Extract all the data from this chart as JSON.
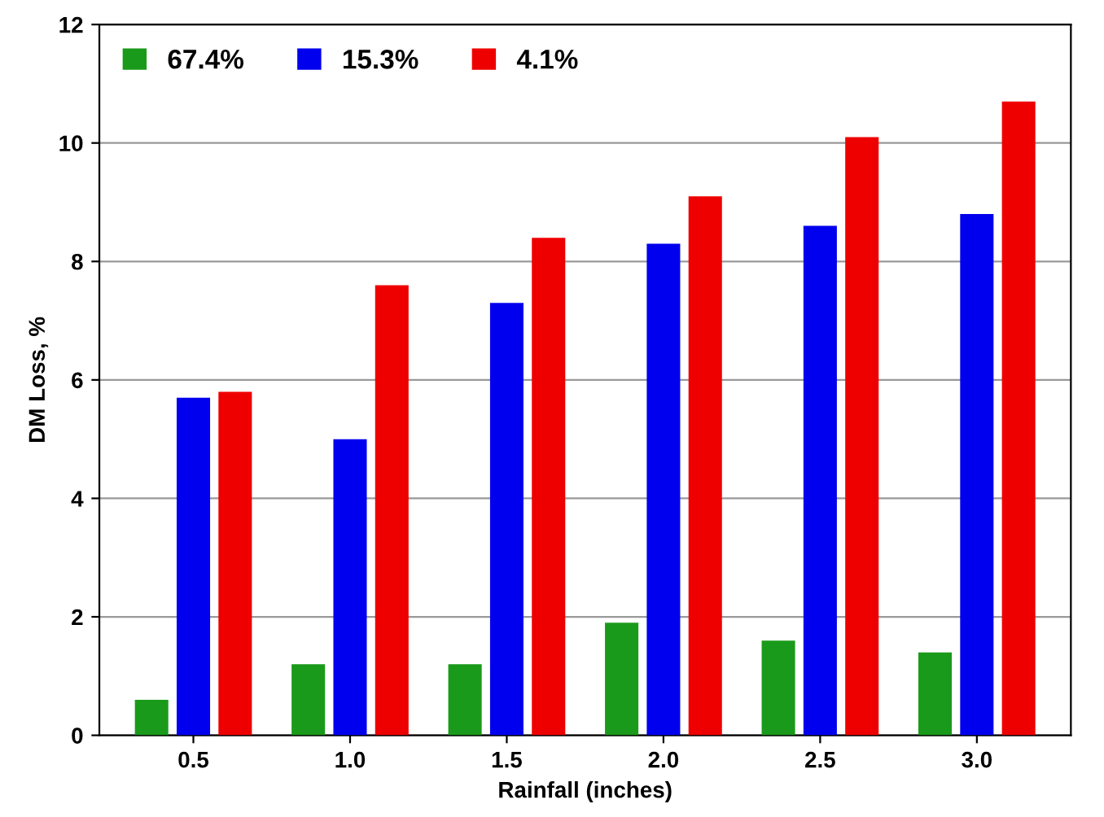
{
  "chart_data": {
    "type": "bar",
    "xlabel": "Rainfall (inches)",
    "ylabel": "DM Loss, %",
    "categories": [
      "0.5",
      "1.0",
      "1.5",
      "2.0",
      "2.5",
      "3.0"
    ],
    "series": [
      {
        "name": "67.4%",
        "color": "#1a9a1a",
        "values": [
          0.6,
          1.2,
          1.2,
          1.9,
          1.6,
          1.4
        ]
      },
      {
        "name": "15.3%",
        "color": "#0000ee",
        "values": [
          5.7,
          5.0,
          7.3,
          8.3,
          8.6,
          8.8
        ]
      },
      {
        "name": "4.1%",
        "color": "#ee0000",
        "values": [
          5.8,
          7.6,
          8.4,
          9.1,
          10.1,
          10.7
        ]
      }
    ],
    "ylim": [
      0,
      12
    ],
    "yticks": [
      0,
      2,
      4,
      6,
      8,
      10,
      12
    ],
    "grid": "y",
    "legend": "top left"
  }
}
